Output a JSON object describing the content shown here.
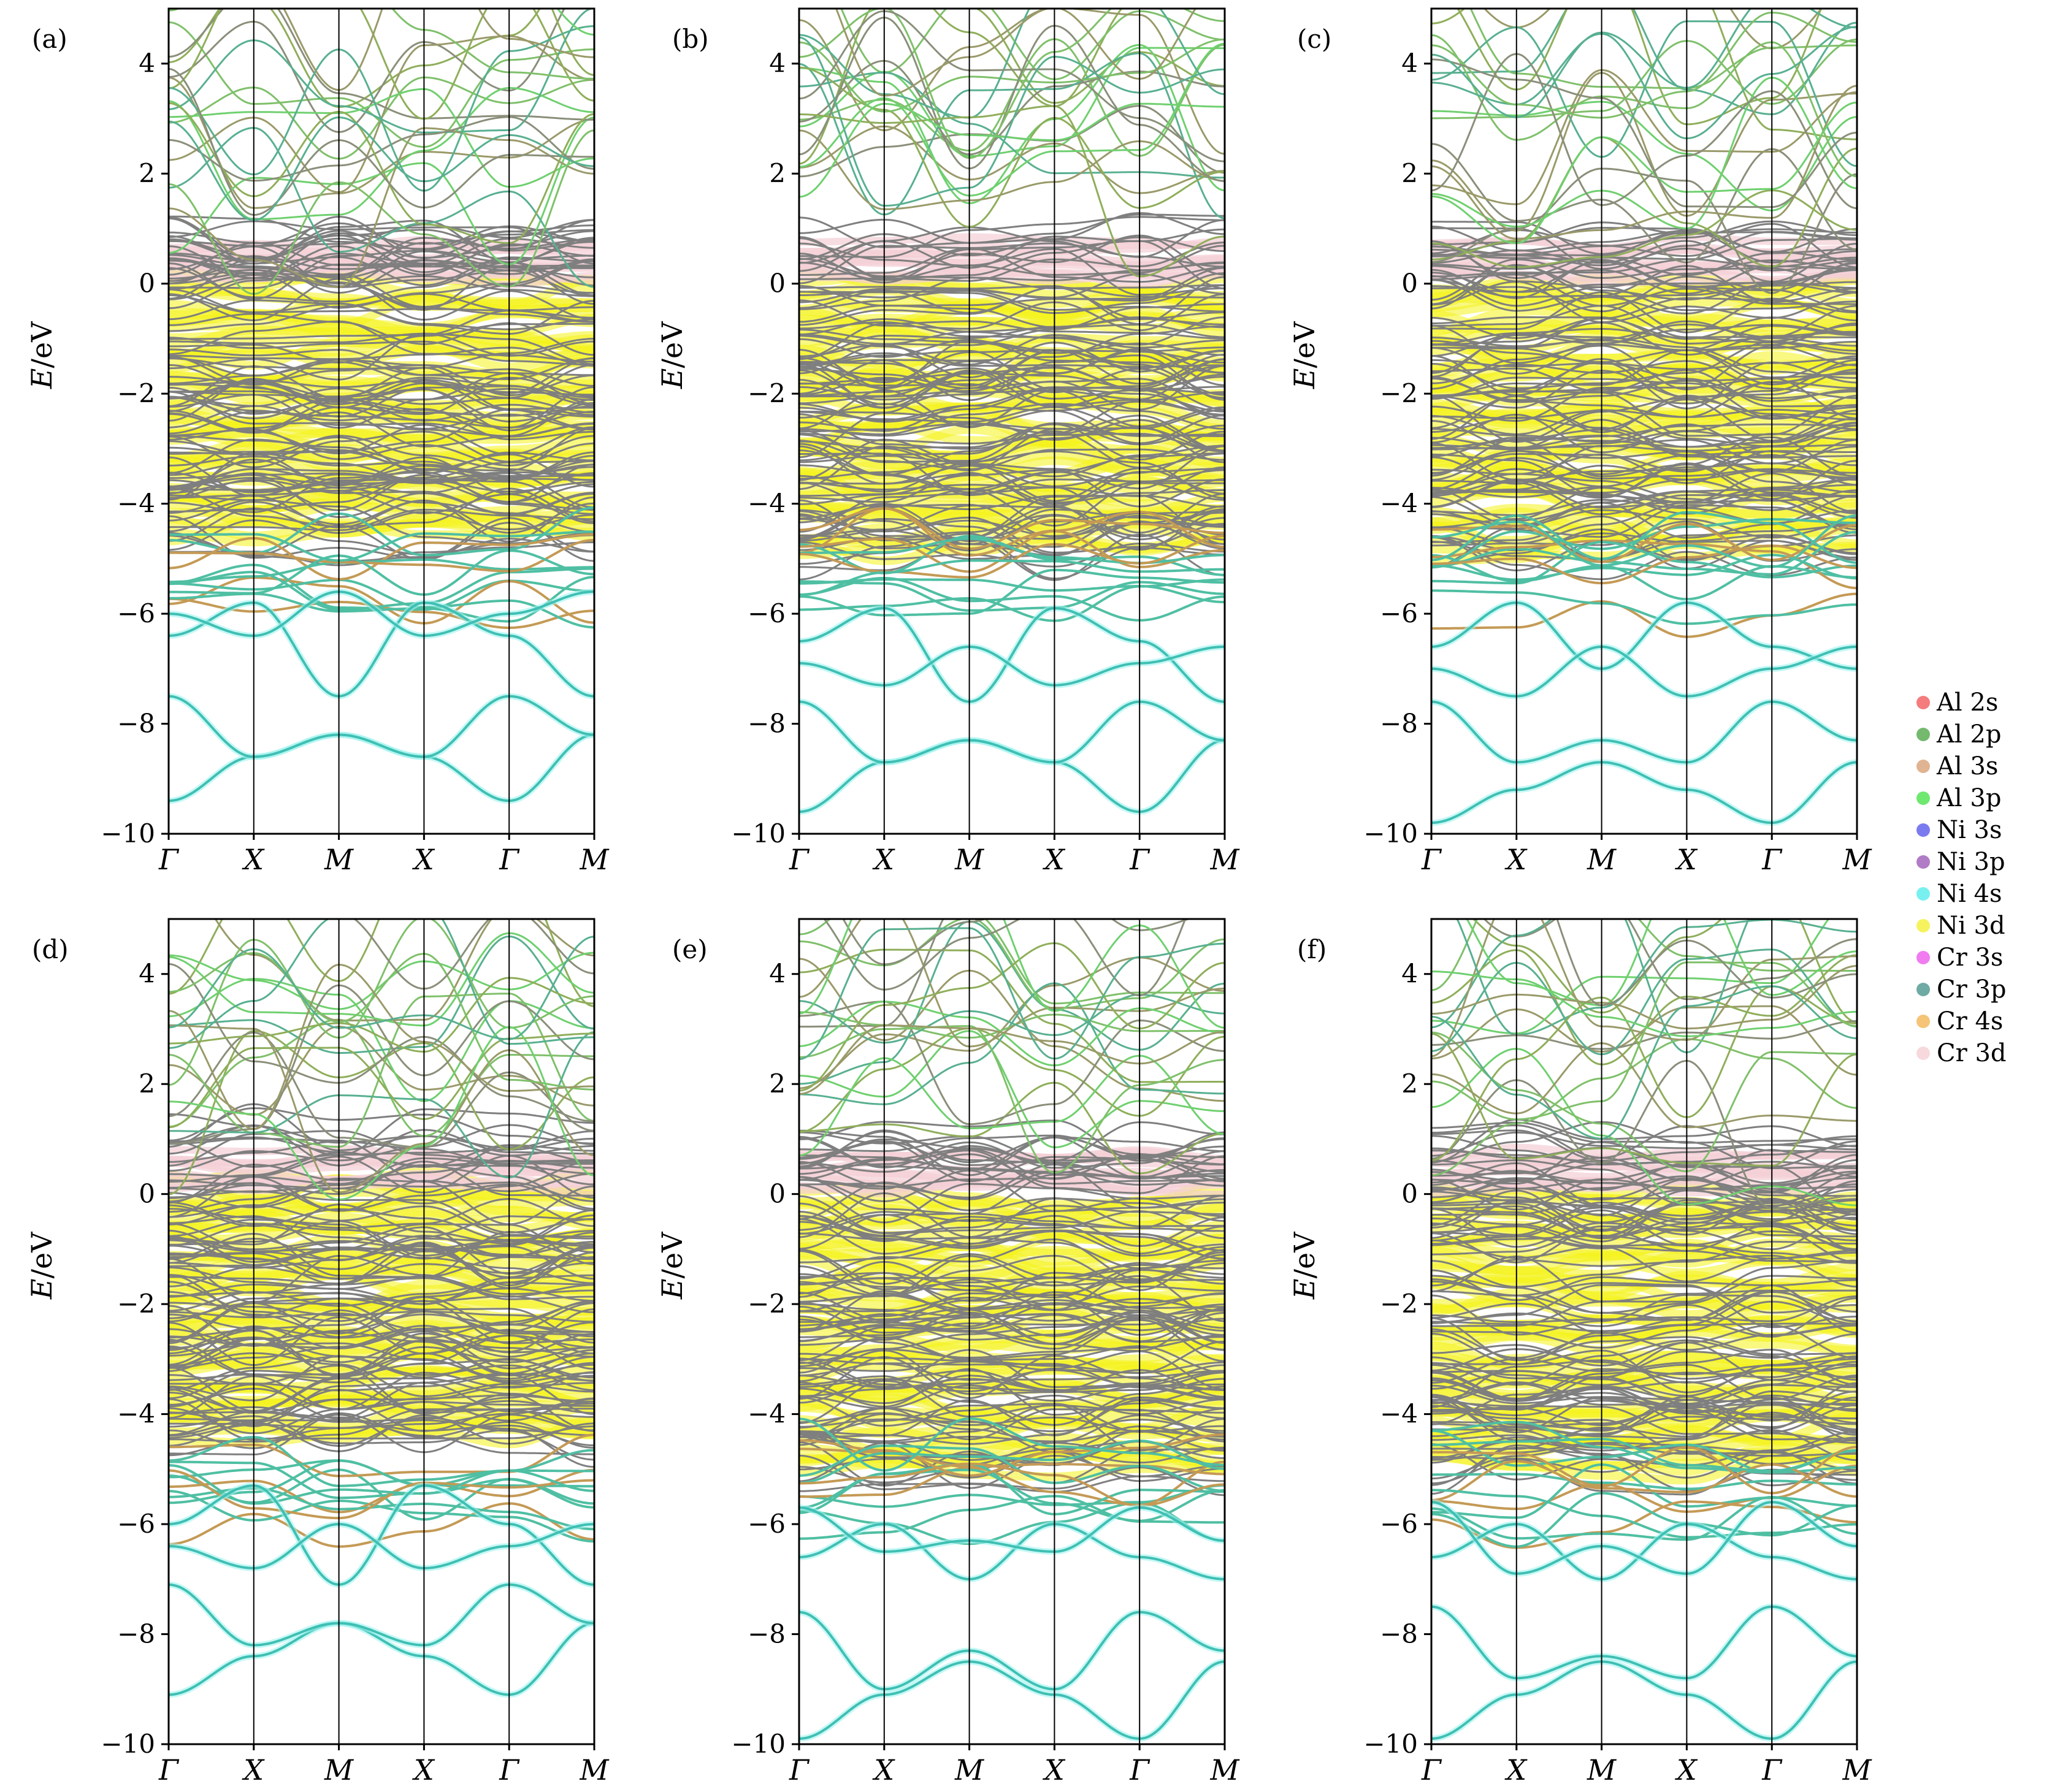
{
  "chart_data": [
    {
      "panel": "(a)",
      "type": "line",
      "ylabel": "E/eV",
      "ylim": [
        -10,
        5
      ],
      "yticks": [
        -10,
        -8,
        -6,
        -4,
        -2,
        0,
        2,
        4
      ],
      "kpath": [
        "Γ",
        "X",
        "M",
        "X",
        "Γ",
        "M"
      ],
      "lowest_bands": [
        {
          "name": "band-1",
          "points": [
            -9.4,
            -8.6,
            -8.2,
            -8.6,
            -9.4,
            -8.2
          ]
        },
        {
          "name": "band-2",
          "points": [
            -7.5,
            -8.6,
            -8.2,
            -8.6,
            -7.5,
            -8.2
          ]
        },
        {
          "name": "band-3",
          "points": [
            -6.4,
            -5.8,
            -7.5,
            -5.8,
            -6.4,
            -7.5
          ]
        },
        {
          "name": "band-4",
          "points": [
            -6.0,
            -6.4,
            -5.6,
            -6.4,
            -6.0,
            -5.6
          ]
        }
      ],
      "dense_region": [
        -4.8,
        1.0
      ]
    },
    {
      "panel": "(b)",
      "type": "line",
      "ylabel": "E/eV",
      "ylim": [
        -10,
        5
      ],
      "yticks": [
        -10,
        -8,
        -6,
        -4,
        -2,
        0,
        2,
        4
      ],
      "kpath": [
        "Γ",
        "X",
        "M",
        "X",
        "Γ",
        "M"
      ],
      "lowest_bands": [
        {
          "name": "band-1",
          "points": [
            -9.6,
            -8.7,
            -8.3,
            -8.7,
            -9.6,
            -8.3
          ]
        },
        {
          "name": "band-2",
          "points": [
            -7.6,
            -8.7,
            -8.3,
            -8.7,
            -7.6,
            -8.3
          ]
        },
        {
          "name": "band-3",
          "points": [
            -6.5,
            -5.9,
            -7.6,
            -5.9,
            -6.5,
            -7.6
          ]
        },
        {
          "name": "band-4",
          "points": [
            -6.9,
            -7.3,
            -6.6,
            -7.3,
            -6.9,
            -6.6
          ]
        }
      ],
      "dense_region": [
        -5.0,
        1.0
      ]
    },
    {
      "panel": "(c)",
      "type": "line",
      "ylabel": "E/eV",
      "ylim": [
        -10,
        5
      ],
      "yticks": [
        -10,
        -8,
        -6,
        -4,
        -2,
        0,
        2,
        4
      ],
      "kpath": [
        "Γ",
        "X",
        "M",
        "X",
        "Γ",
        "M"
      ],
      "lowest_bands": [
        {
          "name": "band-1",
          "points": [
            -9.8,
            -9.2,
            -8.7,
            -9.2,
            -9.8,
            -8.7
          ]
        },
        {
          "name": "band-2",
          "points": [
            -7.6,
            -8.7,
            -8.3,
            -8.7,
            -7.6,
            -8.3
          ]
        },
        {
          "name": "band-3",
          "points": [
            -6.6,
            -5.8,
            -7.0,
            -5.8,
            -6.6,
            -7.0
          ]
        },
        {
          "name": "band-4",
          "points": [
            -7.0,
            -7.5,
            -6.6,
            -7.5,
            -7.0,
            -6.6
          ]
        }
      ],
      "dense_region": [
        -5.0,
        1.0
      ]
    },
    {
      "panel": "(d)",
      "type": "line",
      "ylabel": "E/eV",
      "ylim": [
        -10,
        5
      ],
      "yticks": [
        -10,
        -8,
        -6,
        -4,
        -2,
        0,
        2,
        4
      ],
      "kpath": [
        "Γ",
        "X",
        "M",
        "X",
        "Γ",
        "M"
      ],
      "lowest_bands": [
        {
          "name": "band-1",
          "points": [
            -9.1,
            -8.4,
            -7.8,
            -8.4,
            -9.1,
            -7.8
          ]
        },
        {
          "name": "band-2",
          "points": [
            -7.1,
            -8.2,
            -7.8,
            -8.2,
            -7.1,
            -7.8
          ]
        },
        {
          "name": "band-3",
          "points": [
            -6.0,
            -5.3,
            -7.1,
            -5.3,
            -6.0,
            -7.1
          ]
        },
        {
          "name": "band-4",
          "points": [
            -6.4,
            -6.8,
            -6.0,
            -6.8,
            -6.4,
            -6.0
          ]
        }
      ],
      "dense_region": [
        -4.6,
        1.2
      ]
    },
    {
      "panel": "(e)",
      "type": "line",
      "ylabel": "E/eV",
      "ylim": [
        -10,
        5
      ],
      "yticks": [
        -10,
        -8,
        -6,
        -4,
        -2,
        0,
        2,
        4
      ],
      "kpath": [
        "Γ",
        "X",
        "M",
        "X",
        "Γ",
        "M"
      ],
      "lowest_bands": [
        {
          "name": "band-1",
          "points": [
            -9.9,
            -9.1,
            -8.5,
            -9.1,
            -9.9,
            -8.5
          ]
        },
        {
          "name": "band-2",
          "points": [
            -7.6,
            -9.0,
            -8.3,
            -9.0,
            -7.6,
            -8.3
          ]
        },
        {
          "name": "band-3",
          "points": [
            -6.6,
            -6.0,
            -7.0,
            -6.0,
            -6.6,
            -7.0
          ]
        },
        {
          "name": "band-4",
          "points": [
            -5.7,
            -6.5,
            -6.3,
            -6.5,
            -5.7,
            -6.3
          ]
        }
      ],
      "dense_region": [
        -5.2,
        1.0
      ]
    },
    {
      "panel": "(f)",
      "type": "line",
      "ylabel": "E/eV",
      "ylim": [
        -10,
        5
      ],
      "yticks": [
        -10,
        -8,
        -6,
        -4,
        -2,
        0,
        2,
        4
      ],
      "kpath": [
        "Γ",
        "X",
        "M",
        "X",
        "Γ",
        "M"
      ],
      "lowest_bands": [
        {
          "name": "band-1",
          "points": [
            -9.9,
            -9.1,
            -8.5,
            -9.1,
            -9.9,
            -8.5
          ]
        },
        {
          "name": "band-2",
          "points": [
            -7.5,
            -8.8,
            -8.4,
            -8.8,
            -7.5,
            -8.4
          ]
        },
        {
          "name": "band-3",
          "points": [
            -6.6,
            -6.0,
            -7.0,
            -6.0,
            -6.6,
            -7.0
          ]
        },
        {
          "name": "band-4",
          "points": [
            -5.6,
            -6.9,
            -6.4,
            -6.9,
            -5.6,
            -6.4
          ]
        }
      ],
      "dense_region": [
        -5.2,
        1.0
      ]
    }
  ],
  "legend": {
    "placement": "right",
    "entries": [
      {
        "label": "Al 2s",
        "color": "#f47c7c"
      },
      {
        "label": "Al 2p",
        "color": "#74b96e"
      },
      {
        "label": "Al 3s",
        "color": "#e0b493"
      },
      {
        "label": "Al 3p",
        "color": "#6fe86f"
      },
      {
        "label": "Ni 3s",
        "color": "#7b7bf0"
      },
      {
        "label": "Ni 3p",
        "color": "#b07cc6"
      },
      {
        "label": "Ni 4s",
        "color": "#78f0f0"
      },
      {
        "label": "Ni 3d",
        "color": "#f6f35e"
      },
      {
        "label": "Cr 3s",
        "color": "#f07cf0"
      },
      {
        "label": "Cr 3p",
        "color": "#6faaa4"
      },
      {
        "label": "Cr 4s",
        "color": "#f5c476"
      },
      {
        "label": "Cr 3d",
        "color": "#f7d9dd"
      }
    ]
  },
  "colors": {
    "band_gray": "#7f7f7f",
    "nid_yellow": "#f4f21a",
    "low_band": "#3fbfb3",
    "crd_pink": "#f4cfd5"
  }
}
